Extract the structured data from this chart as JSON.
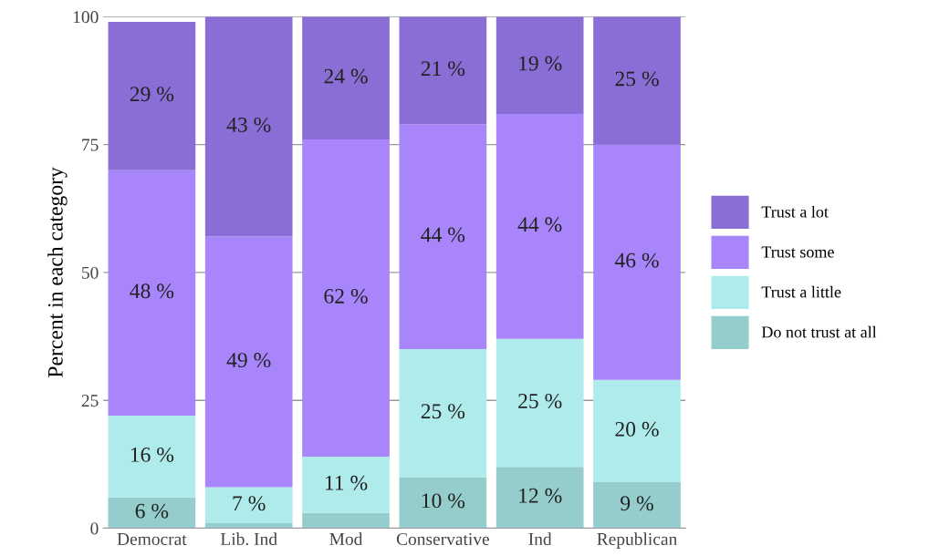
{
  "chart_data": {
    "type": "bar",
    "stacked": true,
    "ylabel": "Percent in each category",
    "categories": [
      "Democrat",
      "Lib. Ind",
      "Mod",
      "Conservative",
      "Ind",
      "Republican"
    ],
    "series": [
      {
        "name": "Do not trust at all",
        "color": "#95cdcd",
        "values": [
          6,
          1,
          3,
          10,
          12,
          9
        ],
        "value_labels": [
          "6 %",
          null,
          null,
          "10 %",
          "12 %",
          "9 %"
        ]
      },
      {
        "name": "Trust a little",
        "color": "#afebeb",
        "values": [
          16,
          7,
          11,
          25,
          25,
          20
        ],
        "value_labels": [
          "16 %",
          "7 %",
          "11 %",
          "25 %",
          "25 %",
          "20 %"
        ]
      },
      {
        "name": "Trust some",
        "color": "#a985fb",
        "values": [
          48,
          49,
          62,
          44,
          44,
          46
        ],
        "value_labels": [
          "48 %",
          "49 %",
          "62 %",
          "44 %",
          "44 %",
          "46 %"
        ]
      },
      {
        "name": "Trust a lot",
        "color": "#8a6ed6",
        "values": [
          29,
          43,
          24,
          21,
          19,
          25
        ],
        "value_labels": [
          "29 %",
          "43 %",
          "24 %",
          "21 %",
          "19 %",
          "25 %"
        ]
      }
    ],
    "ylim": [
      0,
      100
    ],
    "yticks": [
      0,
      25,
      50,
      75,
      100
    ],
    "grid": "y",
    "legend": "right"
  }
}
